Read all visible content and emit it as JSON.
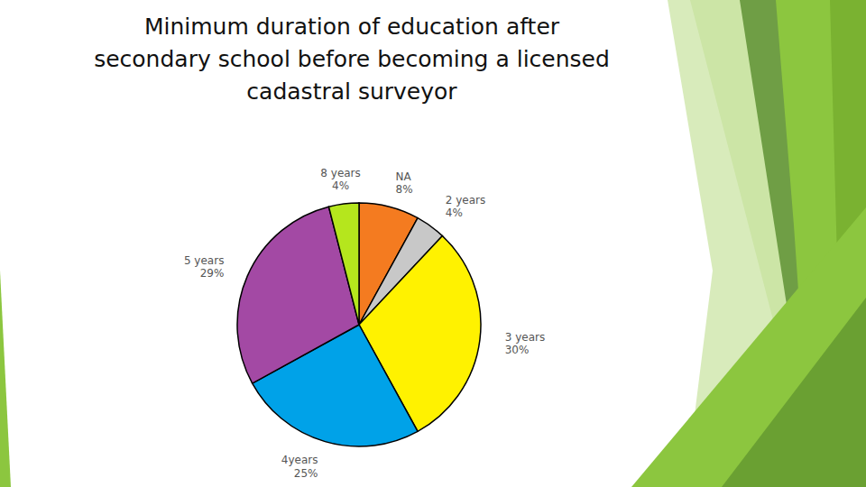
{
  "chart_data": {
    "type": "pie",
    "title": "Minimum duration of education after secondary school before becoming a licensed cadastral surveyor",
    "categories": [
      "NA",
      "2 years",
      "3 years",
      "4years",
      "5 years",
      "8 years"
    ],
    "values": [
      8,
      4,
      30,
      25,
      29,
      4
    ],
    "value_labels": [
      "8%",
      "4%",
      "30%",
      "25%",
      "29%",
      "4%"
    ],
    "colors": [
      "#f47b20",
      "#c8c8c8",
      "#fff200",
      "#00a2e8",
      "#a349a4",
      "#b5e61d"
    ],
    "data_labels": true
  }
}
